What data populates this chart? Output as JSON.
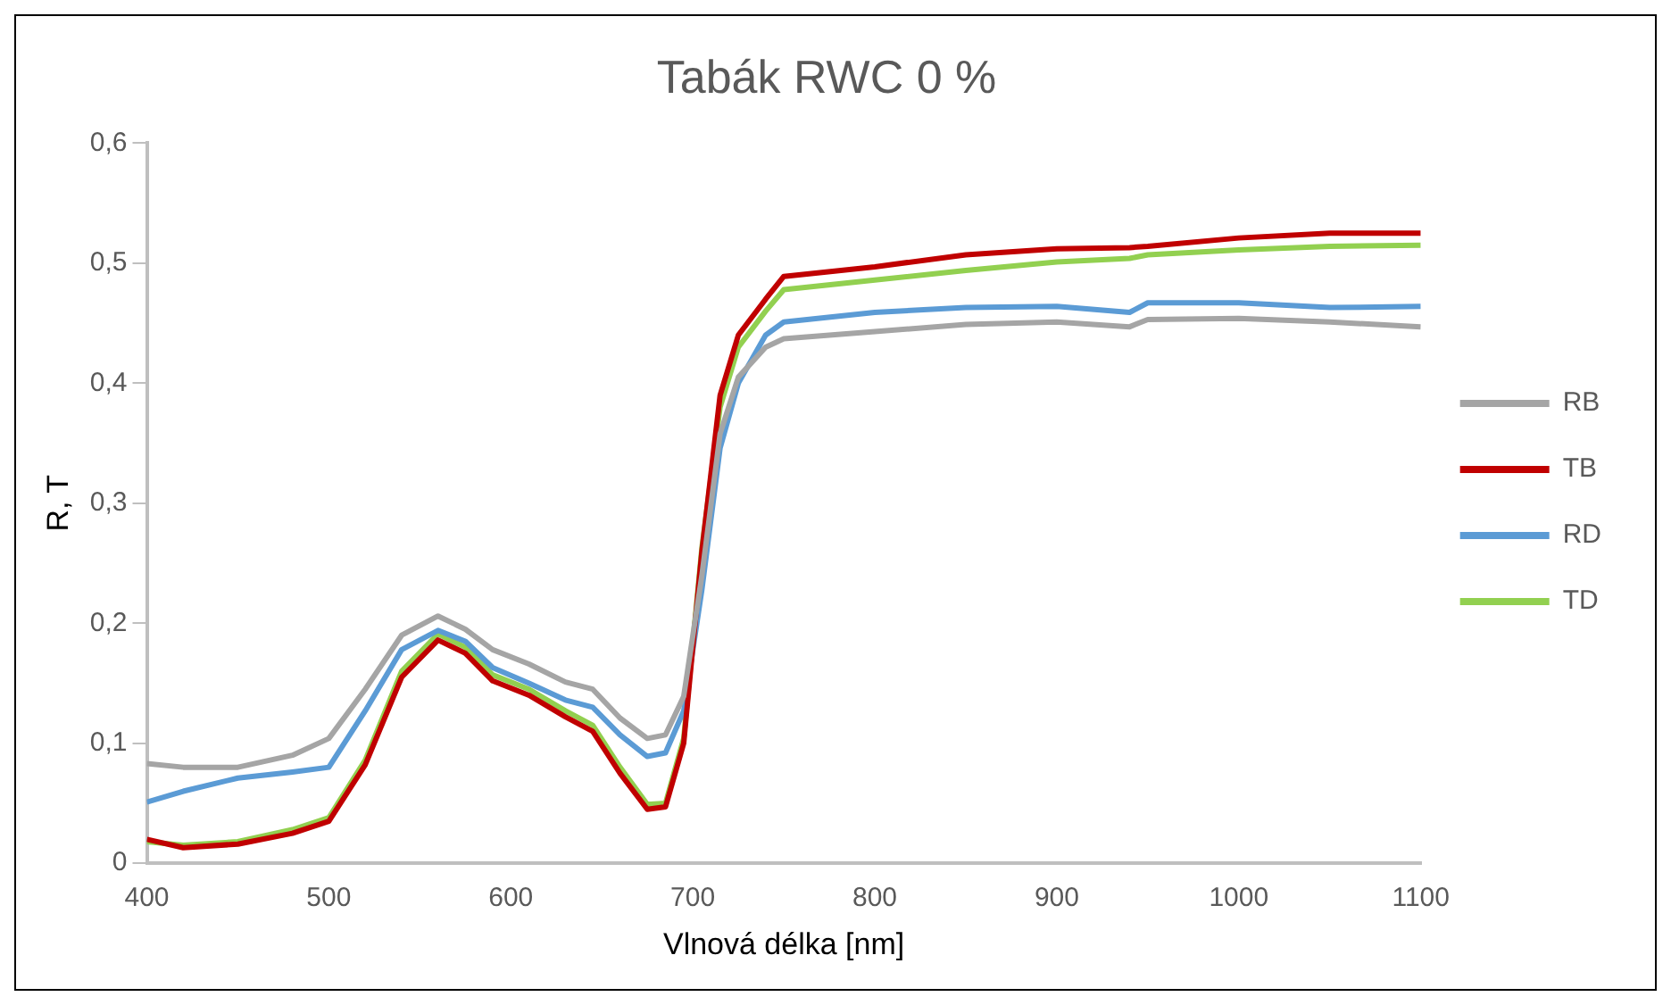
{
  "chart_data": {
    "type": "line",
    "title": "Tabák RWC 0 %",
    "xlabel": "Vlnová délka [nm]",
    "ylabel": "R, T",
    "x": [
      400,
      420,
      450,
      480,
      500,
      520,
      540,
      560,
      575,
      590,
      610,
      630,
      645,
      660,
      675,
      685,
      695,
      705,
      715,
      725,
      740,
      750,
      800,
      850,
      900,
      940,
      950,
      1000,
      1050,
      1100
    ],
    "series": [
      {
        "name": "RB",
        "color": "#a5a5a5",
        "values": [
          0.083,
          0.08,
          0.08,
          0.09,
          0.104,
          0.145,
          0.19,
          0.206,
          0.195,
          0.178,
          0.166,
          0.151,
          0.145,
          0.121,
          0.104,
          0.107,
          0.139,
          0.24,
          0.358,
          0.405,
          0.43,
          0.437,
          0.443,
          0.449,
          0.451,
          0.447,
          0.453,
          0.454,
          0.451,
          0.447
        ]
      },
      {
        "name": "TB",
        "color": "#c00000",
        "values": [
          0.02,
          0.013,
          0.016,
          0.025,
          0.035,
          0.082,
          0.155,
          0.186,
          0.175,
          0.152,
          0.14,
          0.122,
          0.11,
          0.075,
          0.045,
          0.047,
          0.1,
          0.26,
          0.39,
          0.44,
          0.47,
          0.489,
          0.497,
          0.507,
          0.512,
          0.513,
          0.514,
          0.521,
          0.525,
          0.525
        ]
      },
      {
        "name": "RD",
        "color": "#5b9bd5",
        "values": [
          0.051,
          0.06,
          0.071,
          0.076,
          0.08,
          0.127,
          0.178,
          0.194,
          0.185,
          0.163,
          0.15,
          0.136,
          0.13,
          0.107,
          0.089,
          0.092,
          0.127,
          0.228,
          0.346,
          0.4,
          0.44,
          0.451,
          0.459,
          0.463,
          0.464,
          0.459,
          0.467,
          0.467,
          0.463,
          0.464
        ]
      },
      {
        "name": "TD",
        "color": "#92d050",
        "values": [
          0.018,
          0.015,
          0.018,
          0.028,
          0.038,
          0.086,
          0.16,
          0.191,
          0.18,
          0.157,
          0.145,
          0.127,
          0.115,
          0.08,
          0.049,
          0.05,
          0.104,
          0.263,
          0.38,
          0.43,
          0.46,
          0.478,
          0.486,
          0.494,
          0.501,
          0.504,
          0.507,
          0.511,
          0.514,
          0.515
        ]
      }
    ],
    "xlim": [
      400,
      1100
    ],
    "xticks": [
      400,
      500,
      600,
      700,
      800,
      900,
      1000,
      1100
    ],
    "ylim": [
      0,
      0.6
    ],
    "yticks": [
      0,
      {
        "value": 0.1,
        "label": "0,1"
      },
      {
        "value": 0.2,
        "label": "0,2"
      },
      {
        "value": 0.3,
        "label": "0,3"
      },
      {
        "value": 0.4,
        "label": "0,4"
      },
      {
        "value": 0.5,
        "label": "0,5"
      },
      {
        "value": 0.6,
        "label": "0,6"
      }
    ],
    "grid": false,
    "legend": "right",
    "marker": "none",
    "line_style": "solid"
  }
}
